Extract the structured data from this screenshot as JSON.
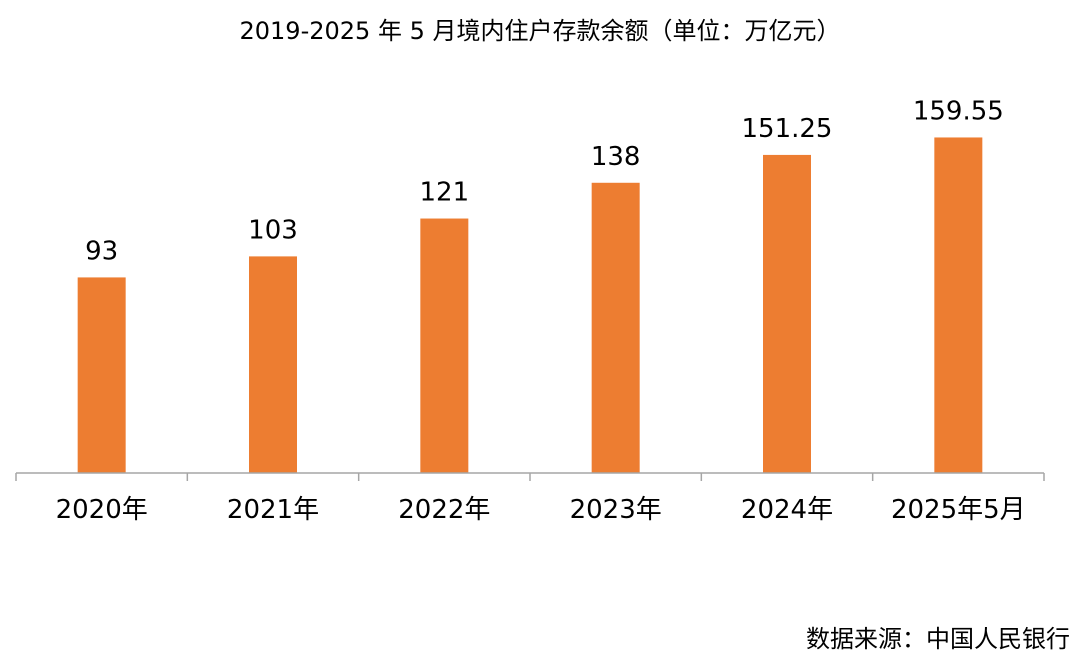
{
  "chart_data": {
    "type": "bar",
    "title": "2019-2025 年 5 月境内住户存款余额（单位：万亿元）",
    "categories": [
      "2020年",
      "2021年",
      "2022年",
      "2023年",
      "2024年",
      "2025年5月"
    ],
    "values": [
      93,
      103,
      121,
      138,
      151.25,
      159.55
    ],
    "value_labels": [
      "93",
      "103",
      "121",
      "138",
      "151.25",
      "159.55"
    ],
    "xlabel": "",
    "ylabel": "",
    "ylim": [
      0,
      165
    ],
    "grid": false,
    "legend": "none",
    "bar_color": "#ED7D31",
    "axis_color": "#A6A6A6"
  },
  "source": "数据来源：中国人民银行"
}
